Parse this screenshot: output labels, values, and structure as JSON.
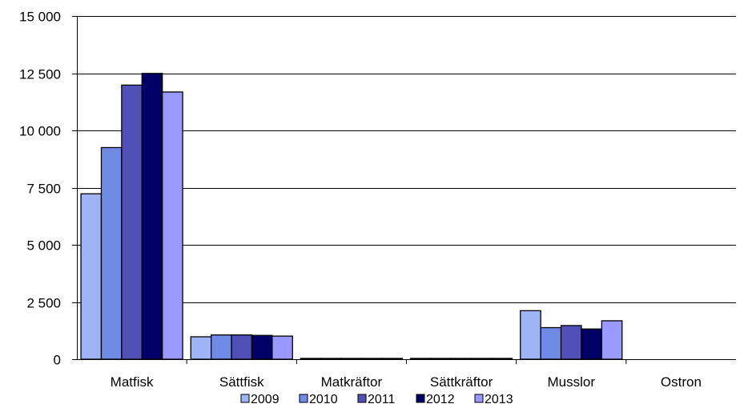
{
  "chart_data": {
    "type": "bar",
    "categories": [
      "Matfisk",
      "Sättfisk",
      "Matkräftor",
      "Sättkräftor",
      "Musslor",
      "Ostron"
    ],
    "series": [
      {
        "name": "2009",
        "color": "#9eb4f4",
        "values": [
          7230,
          980,
          5,
          3,
          2120,
          0
        ]
      },
      {
        "name": "2010",
        "color": "#6f8be6",
        "values": [
          9250,
          1060,
          8,
          4,
          1380,
          0
        ]
      },
      {
        "name": "2011",
        "color": "#5050b8",
        "values": [
          11980,
          1060,
          10,
          5,
          1470,
          0
        ]
      },
      {
        "name": "2012",
        "color": "#000066",
        "values": [
          12490,
          1040,
          12,
          6,
          1320,
          0
        ]
      },
      {
        "name": "2013",
        "color": "#9999ff",
        "values": [
          11680,
          1010,
          14,
          7,
          1680,
          0
        ]
      }
    ],
    "ylim": [
      0,
      15000
    ],
    "yticks": [
      0,
      2500,
      5000,
      7500,
      10000,
      12500,
      15000
    ],
    "ytick_labels": [
      "0",
      "2 500",
      "5 000",
      "7 500",
      "10 000",
      "12 500",
      "15 000"
    ],
    "grid": "horizontal",
    "legend": "bottom",
    "title": "",
    "xlabel": "",
    "ylabel": ""
  }
}
